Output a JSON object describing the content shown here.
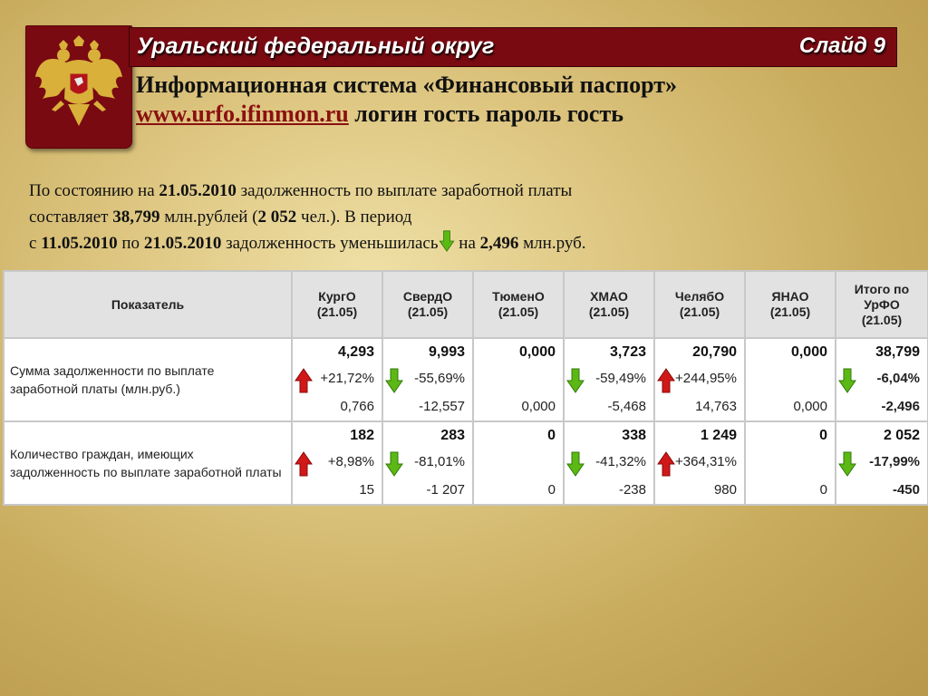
{
  "header": {
    "region": "Уральский федеральный округ",
    "slide": "Слайд 9"
  },
  "subtitle": {
    "line1": "Информационная система «Финансовый паспорт»",
    "link": "www.urfo.ifinmon.ru",
    "line2_rest": " логин гость пароль гость"
  },
  "summary": {
    "p1": "По состоянию на ",
    "date1": "21.05.2010",
    "p2": " задолженность по выплате заработной платы",
    "p3": "составляет ",
    "amount": "38,799",
    "p4": " млн.рублей (",
    "people": "2 052",
    "p5": " чел.). В период",
    "p6": "с ",
    "date_from": "11.05.2010",
    "p7": " по ",
    "date_to": "21.05.2010",
    "p8": " задолженность уменьшилась",
    "p9": " на ",
    "change": "2,496",
    "p10": " млн.руб."
  },
  "table": {
    "header_indicator": "Показатель",
    "columns": [
      {
        "l1": "КургО",
        "l2": "(21.05)"
      },
      {
        "l1": "СвердО",
        "l2": "(21.05)"
      },
      {
        "l1": "ТюменО",
        "l2": "(21.05)"
      },
      {
        "l1": "ХМАО",
        "l2": "(21.05)"
      },
      {
        "l1": "ЧелябО",
        "l2": "(21.05)"
      },
      {
        "l1": "ЯНАО",
        "l2": "(21.05)"
      },
      {
        "l1": "Итого по",
        "l2": "УрФО",
        "l3": "(21.05)"
      }
    ],
    "rows": [
      {
        "label": "Сумма задолженности по выплате заработной платы (млн.руб.)",
        "cells": [
          {
            "v1": "4,293",
            "v2": "+21,72%",
            "v3": "0,766",
            "icon": "up"
          },
          {
            "v1": "9,993",
            "v2": "-55,69%",
            "v3": "-12,557",
            "icon": "down"
          },
          {
            "v1": "0,000",
            "v2": "",
            "v3": "0,000",
            "icon": ""
          },
          {
            "v1": "3,723",
            "v2": "-59,49%",
            "v3": "-5,468",
            "icon": "down"
          },
          {
            "v1": "20,790",
            "v2": "+244,95%",
            "v3": "14,763",
            "icon": "up"
          },
          {
            "v1": "0,000",
            "v2": "",
            "v3": "0,000",
            "icon": ""
          },
          {
            "v1": "38,799",
            "v2": "-6,04%",
            "v3": "-2,496",
            "icon": "down"
          }
        ]
      },
      {
        "label": "Количество граждан, имеющих задолженность по выплате заработной платы",
        "cells": [
          {
            "v1": "182",
            "v2": "+8,98%",
            "v3": "15",
            "icon": "up"
          },
          {
            "v1": "283",
            "v2": "-81,01%",
            "v3": "-1 207",
            "icon": "down"
          },
          {
            "v1": "0",
            "v2": "",
            "v3": "0",
            "icon": ""
          },
          {
            "v1": "338",
            "v2": "-41,32%",
            "v3": "-238",
            "icon": "down"
          },
          {
            "v1": "1 249",
            "v2": "+364,31%",
            "v3": "980",
            "icon": "up"
          },
          {
            "v1": "0",
            "v2": "",
            "v3": "0",
            "icon": ""
          },
          {
            "v1": "2 052",
            "v2": "-17,99%",
            "v3": "-450",
            "icon": "down"
          }
        ]
      }
    ]
  },
  "colors": {
    "banner": "#7a0a12",
    "arrow_up": "#d01818",
    "arrow_down": "#5cb814"
  }
}
